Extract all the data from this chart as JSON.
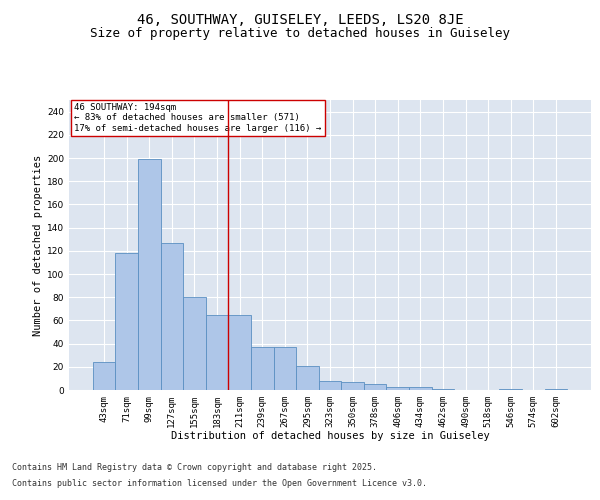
{
  "title1": "46, SOUTHWAY, GUISELEY, LEEDS, LS20 8JE",
  "title2": "Size of property relative to detached houses in Guiseley",
  "xlabel": "Distribution of detached houses by size in Guiseley",
  "ylabel": "Number of detached properties",
  "categories": [
    "43sqm",
    "71sqm",
    "99sqm",
    "127sqm",
    "155sqm",
    "183sqm",
    "211sqm",
    "239sqm",
    "267sqm",
    "295sqm",
    "323sqm",
    "350sqm",
    "378sqm",
    "406sqm",
    "434sqm",
    "462sqm",
    "490sqm",
    "518sqm",
    "546sqm",
    "574sqm",
    "602sqm"
  ],
  "values": [
    24,
    118,
    199,
    127,
    80,
    65,
    65,
    37,
    37,
    21,
    8,
    7,
    5,
    3,
    3,
    1,
    0,
    0,
    1,
    0,
    1
  ],
  "bar_color": "#aec6e8",
  "bar_edge_color": "#5a8fc2",
  "background_color": "#dde5f0",
  "ylim": [
    0,
    250
  ],
  "yticks": [
    0,
    20,
    40,
    60,
    80,
    100,
    120,
    140,
    160,
    180,
    200,
    220,
    240
  ],
  "annotation_box_text": "46 SOUTHWAY: 194sqm\n← 83% of detached houses are smaller (571)\n17% of semi-detached houses are larger (116) →",
  "vline_x": 5.5,
  "vline_color": "#cc0000",
  "footer1": "Contains HM Land Registry data © Crown copyright and database right 2025.",
  "footer2": "Contains public sector information licensed under the Open Government Licence v3.0.",
  "title_fontsize": 10,
  "subtitle_fontsize": 9,
  "label_fontsize": 7.5,
  "tick_fontsize": 6.5,
  "annot_fontsize": 6.5,
  "footer_fontsize": 6
}
